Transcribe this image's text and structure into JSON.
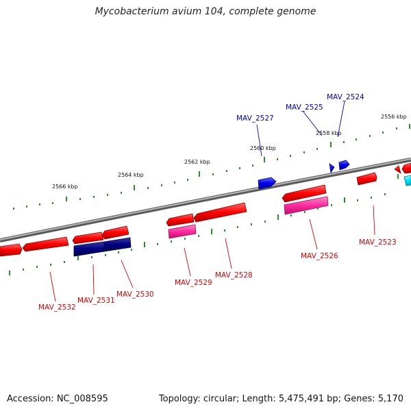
{
  "title": "Mycobacterium avium 104, complete genome",
  "footer": {
    "accession": "Accession: NC_008595",
    "summary": "Topology: circular; Length: 5,475,491 bp; Genes: 5,170"
  },
  "colors": {
    "backbone": "#808080",
    "forward_gene": "#ff0000",
    "reverse_gene": "#ff0000",
    "highlight_blue": "#0000ee",
    "navy": "#000080",
    "pink": "#ff33aa",
    "cyan": "#00e5ff",
    "tick": "#2e8b2e",
    "label_red": "#dd0000",
    "label_blue": "#0000cc"
  },
  "scale_labels": [
    "2566 kbp",
    "2564 kbp",
    "2562 kbp",
    "2560 kbp",
    "2558 kbp",
    "2556 kbp"
  ],
  "gene_labels": [
    {
      "text": "MAV_2527",
      "color": "blue"
    },
    {
      "text": "MAV_2525",
      "color": "blue"
    },
    {
      "text": "MAV_2524",
      "color": "blue"
    },
    {
      "text": "MAV_2523",
      "color": "red"
    },
    {
      "text": "MAV_2526",
      "color": "red"
    },
    {
      "text": "MAV_2528",
      "color": "red"
    },
    {
      "text": "MAV_2529",
      "color": "red"
    },
    {
      "text": "MAV_2530",
      "color": "red"
    },
    {
      "text": "MAV_2531",
      "color": "red"
    },
    {
      "text": "MAV_2532",
      "color": "red"
    }
  ]
}
